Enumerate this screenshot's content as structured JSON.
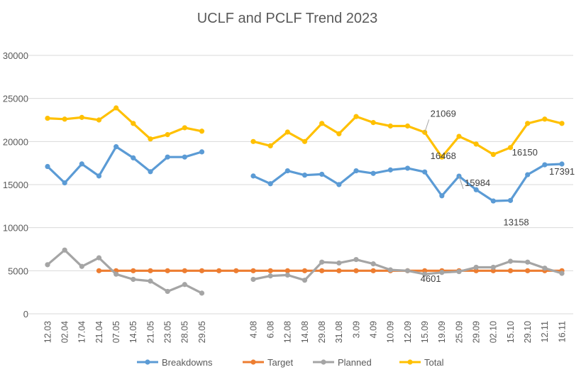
{
  "chart_data": {
    "type": "line",
    "title": "UCLF and PCLF Trend 2023",
    "xlabel": "",
    "ylabel": "",
    "ylim": [
      0,
      30000
    ],
    "yticks": [
      0,
      5000,
      10000,
      15000,
      20000,
      25000
    ],
    "ytick_labels": [
      "0",
      "5000",
      "10000",
      "15000",
      "20000",
      "25000"
    ],
    "top_tick_label": "30000",
    "grid": true,
    "legend": "bottom",
    "categories": [
      "12.03",
      "02.04",
      "17.04",
      "21.04",
      "07.05",
      "14.05",
      "21.05",
      "23.05",
      "28.05",
      "29.05",
      "",
      "",
      "4.08",
      "6.08",
      "12.08",
      "14.08",
      "29.08",
      "31.08",
      "3.09",
      "4.09",
      "10.09",
      "12.09",
      "15.09",
      "19.09",
      "25.09",
      "29.09",
      "02.10",
      "15.10",
      "29.10",
      "12.11",
      "16.11"
    ],
    "series": [
      {
        "name": "Breakdowns",
        "color": "#5b9bd5",
        "values": [
          17100,
          15200,
          17400,
          16000,
          19400,
          18100,
          16500,
          18200,
          18200,
          18800,
          null,
          null,
          16000,
          15100,
          16600,
          16100,
          16200,
          15000,
          16600,
          16300,
          16700,
          16900,
          16468,
          13700,
          15984,
          14400,
          13100,
          13158,
          16150,
          17300,
          17391
        ]
      },
      {
        "name": "Target",
        "color": "#ed7d31",
        "values": [
          null,
          null,
          null,
          5000,
          5000,
          5000,
          5000,
          5000,
          5000,
          5000,
          5000,
          5000,
          5000,
          5000,
          5000,
          5000,
          5000,
          5000,
          5000,
          5000,
          5000,
          5000,
          5000,
          5000,
          5000,
          5000,
          5000,
          5000,
          5000,
          5000,
          5000
        ]
      },
      {
        "name": "Planned",
        "color": "#a5a5a5",
        "values": [
          5700,
          7400,
          5500,
          6500,
          4600,
          4000,
          3800,
          2600,
          3400,
          2400,
          null,
          null,
          4000,
          4400,
          4500,
          3900,
          6000,
          5900,
          6300,
          5800,
          5100,
          5000,
          4601,
          4800,
          4900,
          5400,
          5400,
          6100,
          6000,
          5300,
          4700
        ]
      },
      {
        "name": "Total",
        "color": "#ffc000",
        "values": [
          22700,
          22600,
          22800,
          22500,
          23900,
          22100,
          20300,
          20800,
          21600,
          21200,
          null,
          null,
          20000,
          19500,
          21100,
          20000,
          22100,
          20900,
          22900,
          22200,
          21800,
          21800,
          21069,
          18200,
          20600,
          19700,
          18500,
          19300,
          22100,
          22600,
          22100
        ]
      }
    ],
    "annotations": [
      {
        "series": "Total",
        "index": 22,
        "text": "21069"
      },
      {
        "series": "Breakdowns",
        "index": 22,
        "text": "16468"
      },
      {
        "series": "Breakdowns",
        "index": 24,
        "text": "15984"
      },
      {
        "series": "Planned",
        "index": 22,
        "text": "4601"
      },
      {
        "series": "Breakdowns",
        "index": 27,
        "text": "13158"
      },
      {
        "series": "Breakdowns",
        "index": 28,
        "text": "16150"
      },
      {
        "series": "Breakdowns",
        "index": 30,
        "text": "17391"
      }
    ]
  }
}
